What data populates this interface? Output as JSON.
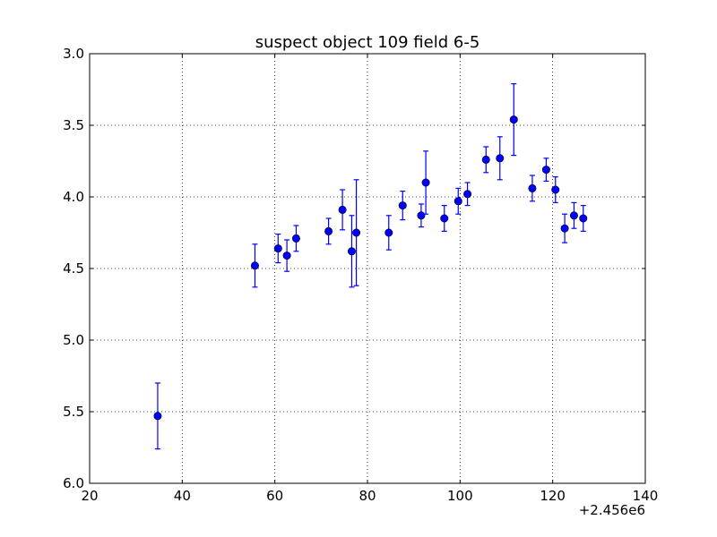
{
  "chart_data": {
    "type": "scatter",
    "title": "suspect object 109 field 6-5",
    "xlabel": "",
    "ylabel": "",
    "x_offset_label": "+2.456e6",
    "xlim": [
      20,
      140
    ],
    "ylim": [
      3.0,
      6.0
    ],
    "y_inverted": true,
    "grid": true,
    "x_ticks": [
      "20",
      "40",
      "60",
      "80",
      "100",
      "120",
      "140"
    ],
    "y_ticks": [
      "3.0",
      "3.5",
      "4.0",
      "4.5",
      "5.0",
      "5.5",
      "6.0"
    ],
    "marker_color": "#0000ff",
    "points": [
      {
        "x": 34.7,
        "y": 5.53,
        "err": 0.23
      },
      {
        "x": 55.7,
        "y": 4.48,
        "err": 0.15
      },
      {
        "x": 60.7,
        "y": 4.36,
        "err": 0.1
      },
      {
        "x": 62.6,
        "y": 4.41,
        "err": 0.11
      },
      {
        "x": 64.6,
        "y": 4.29,
        "err": 0.09
      },
      {
        "x": 71.6,
        "y": 4.24,
        "err": 0.09
      },
      {
        "x": 74.6,
        "y": 4.09,
        "err": 0.14
      },
      {
        "x": 76.6,
        "y": 4.38,
        "err": 0.25
      },
      {
        "x": 77.6,
        "y": 4.25,
        "err": 0.37
      },
      {
        "x": 84.6,
        "y": 4.25,
        "err": 0.12
      },
      {
        "x": 87.6,
        "y": 4.06,
        "err": 0.1
      },
      {
        "x": 91.6,
        "y": 4.13,
        "err": 0.08
      },
      {
        "x": 92.6,
        "y": 3.9,
        "err": 0.22
      },
      {
        "x": 96.6,
        "y": 4.15,
        "err": 0.09
      },
      {
        "x": 99.6,
        "y": 4.03,
        "err": 0.09
      },
      {
        "x": 101.6,
        "y": 3.98,
        "err": 0.08
      },
      {
        "x": 105.6,
        "y": 3.74,
        "err": 0.09
      },
      {
        "x": 108.6,
        "y": 3.73,
        "err": 0.15
      },
      {
        "x": 111.6,
        "y": 3.46,
        "err": 0.25
      },
      {
        "x": 115.6,
        "y": 3.94,
        "err": 0.09
      },
      {
        "x": 118.6,
        "y": 3.81,
        "err": 0.08
      },
      {
        "x": 120.6,
        "y": 3.95,
        "err": 0.09
      },
      {
        "x": 122.6,
        "y": 4.22,
        "err": 0.1
      },
      {
        "x": 124.6,
        "y": 4.13,
        "err": 0.09
      },
      {
        "x": 126.6,
        "y": 4.15,
        "err": 0.09
      }
    ]
  }
}
